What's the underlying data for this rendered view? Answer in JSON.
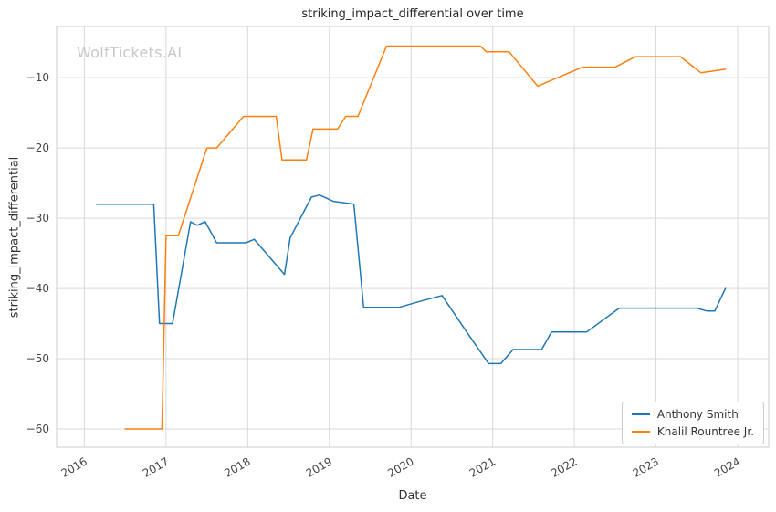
{
  "watermark": "WolfTickets.AI",
  "chart_data": {
    "type": "line",
    "title": "striking_impact_differential over time",
    "xlabel": "Date",
    "ylabel": "striking_impact_differential",
    "x_domain": [
      2015.66,
      2024.38
    ],
    "y_domain": [
      -62.6,
      -2.7
    ],
    "x_ticks": [
      2016,
      2017,
      2018,
      2019,
      2020,
      2021,
      2022,
      2023,
      2024
    ],
    "y_ticks": [
      -60,
      -50,
      -40,
      -30,
      -20,
      -10
    ],
    "grid": true,
    "grid_color": "#d9d9d9",
    "axis_border_color": "#cccccc",
    "tick_label_color": "#444444",
    "legend_position": "lower right",
    "series": [
      {
        "name": "Anthony Smith",
        "color": "#1f77b4",
        "x": [
          2016.15,
          2016.85,
          2016.92,
          2017.08,
          2017.3,
          2017.38,
          2017.48,
          2017.62,
          2017.98,
          2018.08,
          2018.45,
          2018.52,
          2018.78,
          2018.88,
          2019.05,
          2019.3,
          2019.42,
          2019.85,
          2020.15,
          2020.38,
          2020.7,
          2020.95,
          2021.1,
          2021.25,
          2021.6,
          2021.72,
          2022.15,
          2022.55,
          2023.5,
          2023.62,
          2023.72,
          2023.85
        ],
        "y": [
          -28,
          -28,
          -45,
          -45,
          -30.5,
          -31,
          -30.5,
          -33.5,
          -33.5,
          -33,
          -38,
          -32.8,
          -27,
          -26.7,
          -27.6,
          -28,
          -42.7,
          -42.7,
          -41.7,
          -41,
          -46.5,
          -50.7,
          -50.7,
          -48.7,
          -48.7,
          -46.2,
          -46.2,
          -42.8,
          -42.8,
          -43.2,
          -43.2,
          -40
        ]
      },
      {
        "name": "Khalil Rountree Jr.",
        "color": "#ff7f0e",
        "x": [
          2016.5,
          2016.95,
          2017.0,
          2017.15,
          2017.5,
          2017.62,
          2017.95,
          2018.35,
          2018.42,
          2018.72,
          2018.8,
          2019.1,
          2019.2,
          2019.35,
          2019.7,
          2020.85,
          2020.92,
          2021.2,
          2021.55,
          2022.1,
          2022.5,
          2022.75,
          2023.3,
          2023.55,
          2023.85
        ],
        "y": [
          -60,
          -60,
          -32.5,
          -32.5,
          -20,
          -20,
          -15.5,
          -15.5,
          -21.7,
          -21.7,
          -17.3,
          -17.3,
          -15.5,
          -15.5,
          -5.5,
          -5.5,
          -6.3,
          -6.3,
          -11.2,
          -8.5,
          -8.5,
          -7,
          -7,
          -9.3,
          -8.8
        ]
      }
    ]
  }
}
